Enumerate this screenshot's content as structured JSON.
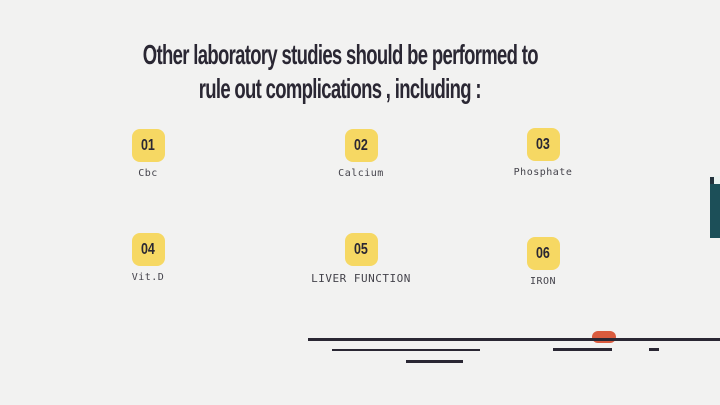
{
  "slide": {
    "title_line1": "Other laboratory studies should be performed to",
    "title_line2": "rule out complications , including :",
    "items": [
      {
        "number": "01",
        "label": "Cbc"
      },
      {
        "number": "02",
        "label": "Calcium"
      },
      {
        "number": "03",
        "label": "Phosphate"
      },
      {
        "number": "04",
        "label": "Vit.D"
      },
      {
        "number": "05",
        "label": "LIVER FUNCTION"
      },
      {
        "number": "06",
        "label": "IRON"
      }
    ],
    "colors": {
      "background": "#f2f2f1",
      "text_dark": "#2a2733",
      "badge_yellow": "#f6d863",
      "label_gray": "#44434b",
      "accent_orange": "#d95b3e",
      "accent_teal": "#1c4f58"
    }
  }
}
